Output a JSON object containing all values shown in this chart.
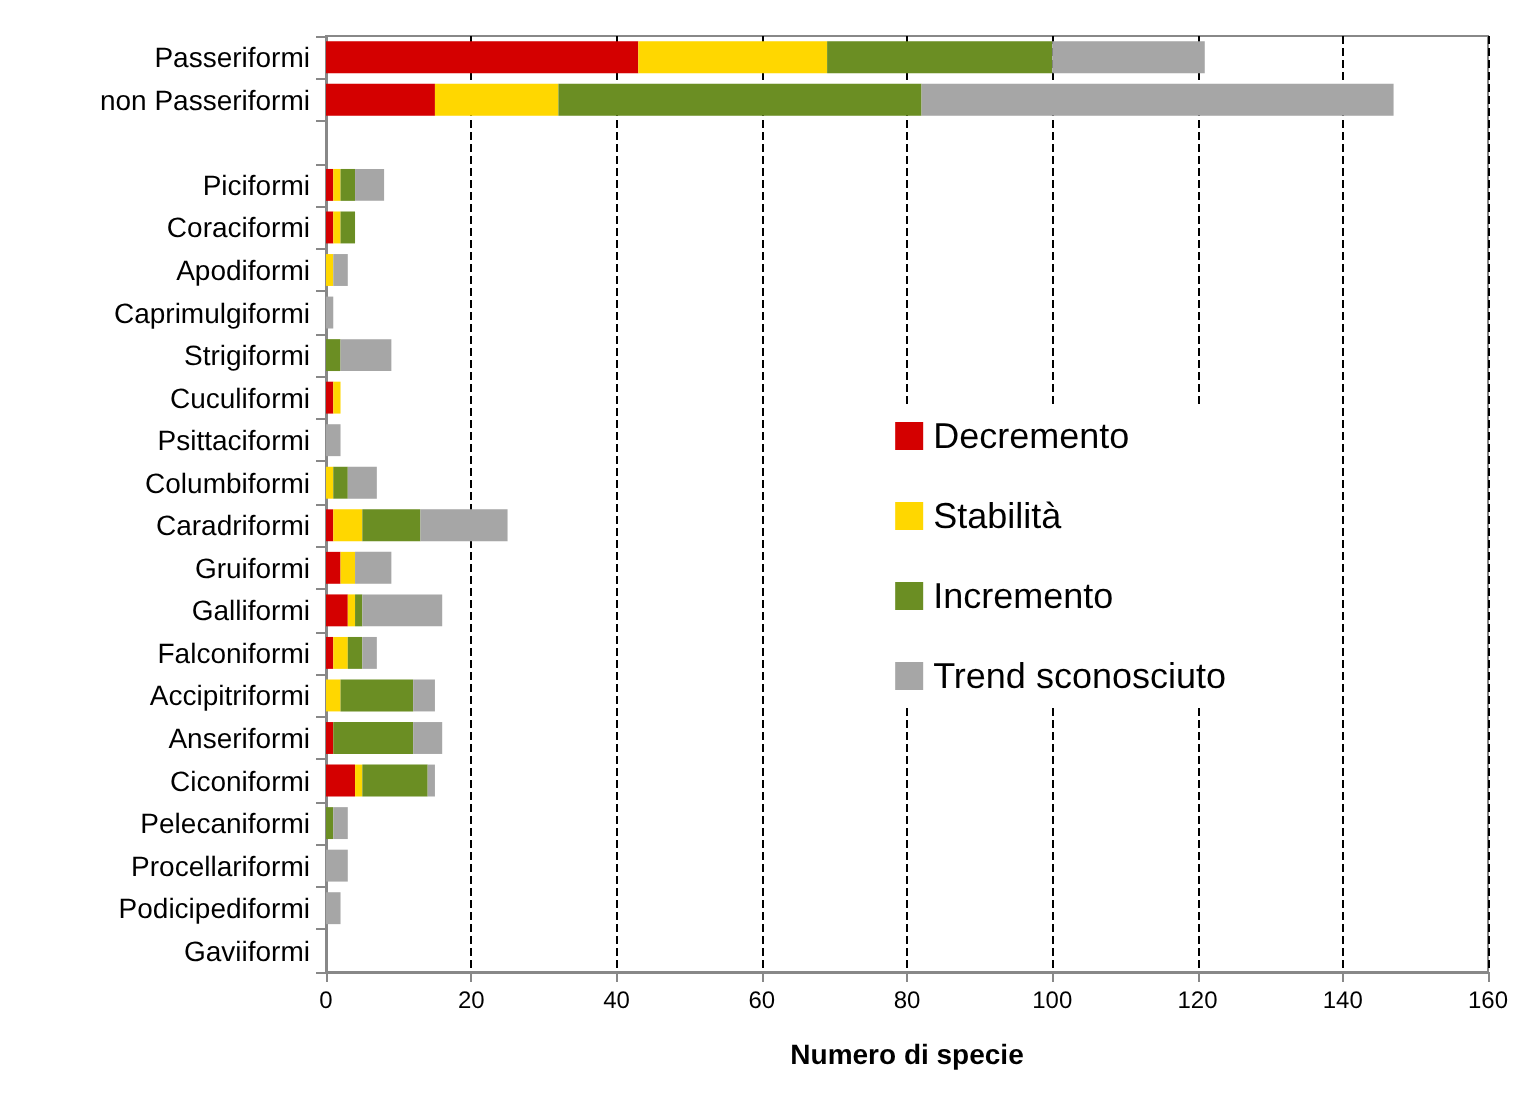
{
  "chart_data": {
    "type": "bar",
    "orientation": "horizontal",
    "stacked": true,
    "xlabel": "Numero di specie",
    "categories": [
      "Passeriformi",
      "non Passeriformi",
      null,
      "Piciformi",
      "Coraciformi",
      "Apodiformi",
      "Caprimulgiformi",
      "Strigiformi",
      "Cuculiformi",
      "Psittaciformi",
      "Columbiformi",
      "Caradriformi",
      "Gruiformi",
      "Galliformi",
      "Falconiformi",
      "Accipitriformi",
      "Anseriformi",
      "Ciconiformi",
      "Pelecaniformi",
      "Procellariformi",
      "Podicipediformi",
      "Gaviiformi"
    ],
    "series": [
      {
        "name": "Decremento",
        "color": "#d40000",
        "values": [
          43,
          15,
          null,
          1,
          1,
          0,
          0,
          0,
          1,
          0,
          0,
          1,
          2,
          3,
          1,
          0,
          1,
          4,
          0,
          0,
          0,
          0
        ]
      },
      {
        "name": "Stabilità",
        "color": "#ffd700",
        "values": [
          26,
          17,
          null,
          1,
          1,
          1,
          0,
          0,
          1,
          0,
          1,
          4,
          2,
          1,
          2,
          2,
          0,
          1,
          0,
          0,
          0,
          0
        ]
      },
      {
        "name": "Incremento",
        "color": "#6b8e23",
        "values": [
          31,
          50,
          null,
          2,
          2,
          0,
          0,
          2,
          0,
          0,
          2,
          8,
          0,
          1,
          2,
          10,
          11,
          9,
          1,
          0,
          0,
          0
        ]
      },
      {
        "name": "Trend sconosciuto",
        "color": "#a6a6a6",
        "values": [
          21,
          65,
          null,
          4,
          0,
          2,
          1,
          7,
          0,
          2,
          4,
          12,
          5,
          11,
          2,
          3,
          4,
          1,
          2,
          3,
          2,
          0
        ]
      }
    ],
    "xlim": [
      0,
      160
    ],
    "xticks": [
      0,
      20,
      40,
      60,
      80,
      100,
      120,
      140,
      160
    ],
    "grid": "x",
    "legend": "right"
  }
}
